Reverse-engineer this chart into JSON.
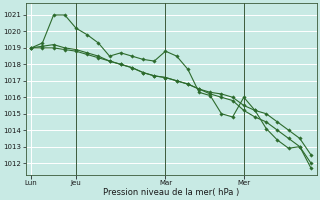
{
  "background_color": "#c8eae4",
  "grid_color": "#ffffff",
  "line_color": "#2d6b2d",
  "xlabel": "Pression niveau de la mer( hPa )",
  "ylim": [
    1011.3,
    1021.7
  ],
  "yticks": [
    1012,
    1013,
    1014,
    1015,
    1016,
    1017,
    1018,
    1019,
    1020,
    1021
  ],
  "day_labels": [
    "Lun",
    "Jeu",
    "Mar",
    "Mer"
  ],
  "day_positions": [
    0,
    4,
    12,
    19
  ],
  "vline_positions": [
    4,
    12,
    19
  ],
  "n_points": 26,
  "series1": [
    1019.0,
    1019.3,
    1021.0,
    1021.0,
    1020.2,
    1019.8,
    1019.3,
    1018.5,
    1018.7,
    1018.5,
    1018.3,
    1018.2,
    1018.8,
    1018.5,
    1017.7,
    1016.3,
    1016.1,
    1015.0,
    1014.8,
    1016.0,
    1015.2,
    1014.1,
    1013.4,
    1012.9,
    1013.0,
    1012.0
  ],
  "series2": [
    1019.0,
    1019.1,
    1019.2,
    1019.0,
    1018.9,
    1018.7,
    1018.5,
    1018.2,
    1018.0,
    1017.8,
    1017.5,
    1017.3,
    1017.2,
    1017.0,
    1016.8,
    1016.5,
    1016.3,
    1016.2,
    1016.0,
    1015.5,
    1015.2,
    1015.0,
    1014.5,
    1014.0,
    1013.5,
    1012.5
  ],
  "series3": [
    1019.0,
    1019.0,
    1019.0,
    1018.9,
    1018.8,
    1018.6,
    1018.4,
    1018.2,
    1018.0,
    1017.8,
    1017.5,
    1017.3,
    1017.2,
    1017.0,
    1016.8,
    1016.5,
    1016.2,
    1016.0,
    1015.8,
    1015.2,
    1014.8,
    1014.5,
    1014.0,
    1013.5,
    1013.0,
    1011.7
  ]
}
